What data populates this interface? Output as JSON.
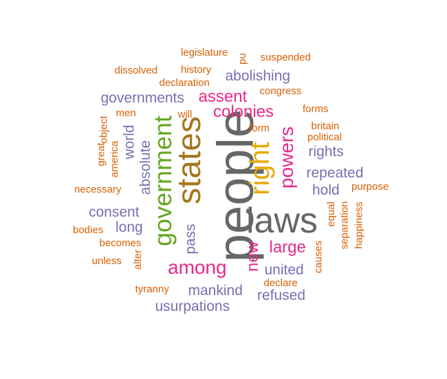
{
  "palette": {
    "orange": "#D95F02",
    "purple": "#7570B3",
    "magenta": "#E7298A",
    "green": "#66A61E",
    "gold": "#E6AB02",
    "olive": "#A6761D",
    "gray": "#666666"
  },
  "words": [
    {
      "text": "people",
      "color": "gray"
    },
    {
      "text": "laws",
      "color": "gray"
    },
    {
      "text": "states",
      "color": "olive"
    },
    {
      "text": "right",
      "color": "gold"
    },
    {
      "text": "government",
      "color": "green"
    },
    {
      "text": "among",
      "color": "magenta"
    },
    {
      "text": "powers",
      "color": "magenta"
    },
    {
      "text": "colonies",
      "color": "magenta"
    },
    {
      "text": "assent",
      "color": "magenta"
    },
    {
      "text": "large",
      "color": "magenta"
    },
    {
      "text": "new",
      "color": "magenta"
    },
    {
      "text": "governments",
      "color": "purple"
    },
    {
      "text": "abolishing",
      "color": "purple"
    },
    {
      "text": "repeated",
      "color": "purple"
    },
    {
      "text": "rights",
      "color": "purple"
    },
    {
      "text": "hold",
      "color": "purple"
    },
    {
      "text": "consent",
      "color": "purple"
    },
    {
      "text": "long",
      "color": "purple"
    },
    {
      "text": "mankind",
      "color": "purple"
    },
    {
      "text": "united",
      "color": "purple"
    },
    {
      "text": "refused",
      "color": "purple"
    },
    {
      "text": "usurpations",
      "color": "purple"
    },
    {
      "text": "absolute",
      "color": "purple"
    },
    {
      "text": "world",
      "color": "purple"
    },
    {
      "text": "pass",
      "color": "purple"
    },
    {
      "text": "legislature",
      "color": "orange"
    },
    {
      "text": "pu",
      "color": "orange"
    },
    {
      "text": "suspended",
      "color": "orange"
    },
    {
      "text": "dissolved",
      "color": "orange"
    },
    {
      "text": "history",
      "color": "orange"
    },
    {
      "text": "declaration",
      "color": "orange"
    },
    {
      "text": "congress",
      "color": "orange"
    },
    {
      "text": "men",
      "color": "orange"
    },
    {
      "text": "will",
      "color": "orange"
    },
    {
      "text": "forms",
      "color": "orange"
    },
    {
      "text": "form",
      "color": "orange"
    },
    {
      "text": "britain",
      "color": "orange"
    },
    {
      "text": "political",
      "color": "orange"
    },
    {
      "text": "great",
      "color": "orange"
    },
    {
      "text": "object",
      "color": "orange"
    },
    {
      "text": "america",
      "color": "orange"
    },
    {
      "text": "necessary",
      "color": "orange"
    },
    {
      "text": "purpose",
      "color": "orange"
    },
    {
      "text": "equal",
      "color": "orange"
    },
    {
      "text": "separation",
      "color": "orange"
    },
    {
      "text": "happiness",
      "color": "orange"
    },
    {
      "text": "bodies",
      "color": "orange"
    },
    {
      "text": "becomes",
      "color": "orange"
    },
    {
      "text": "unless",
      "color": "orange"
    },
    {
      "text": "alter",
      "color": "orange"
    },
    {
      "text": "causes",
      "color": "orange"
    },
    {
      "text": "tyranny",
      "color": "orange"
    },
    {
      "text": "declare",
      "color": "orange"
    }
  ]
}
